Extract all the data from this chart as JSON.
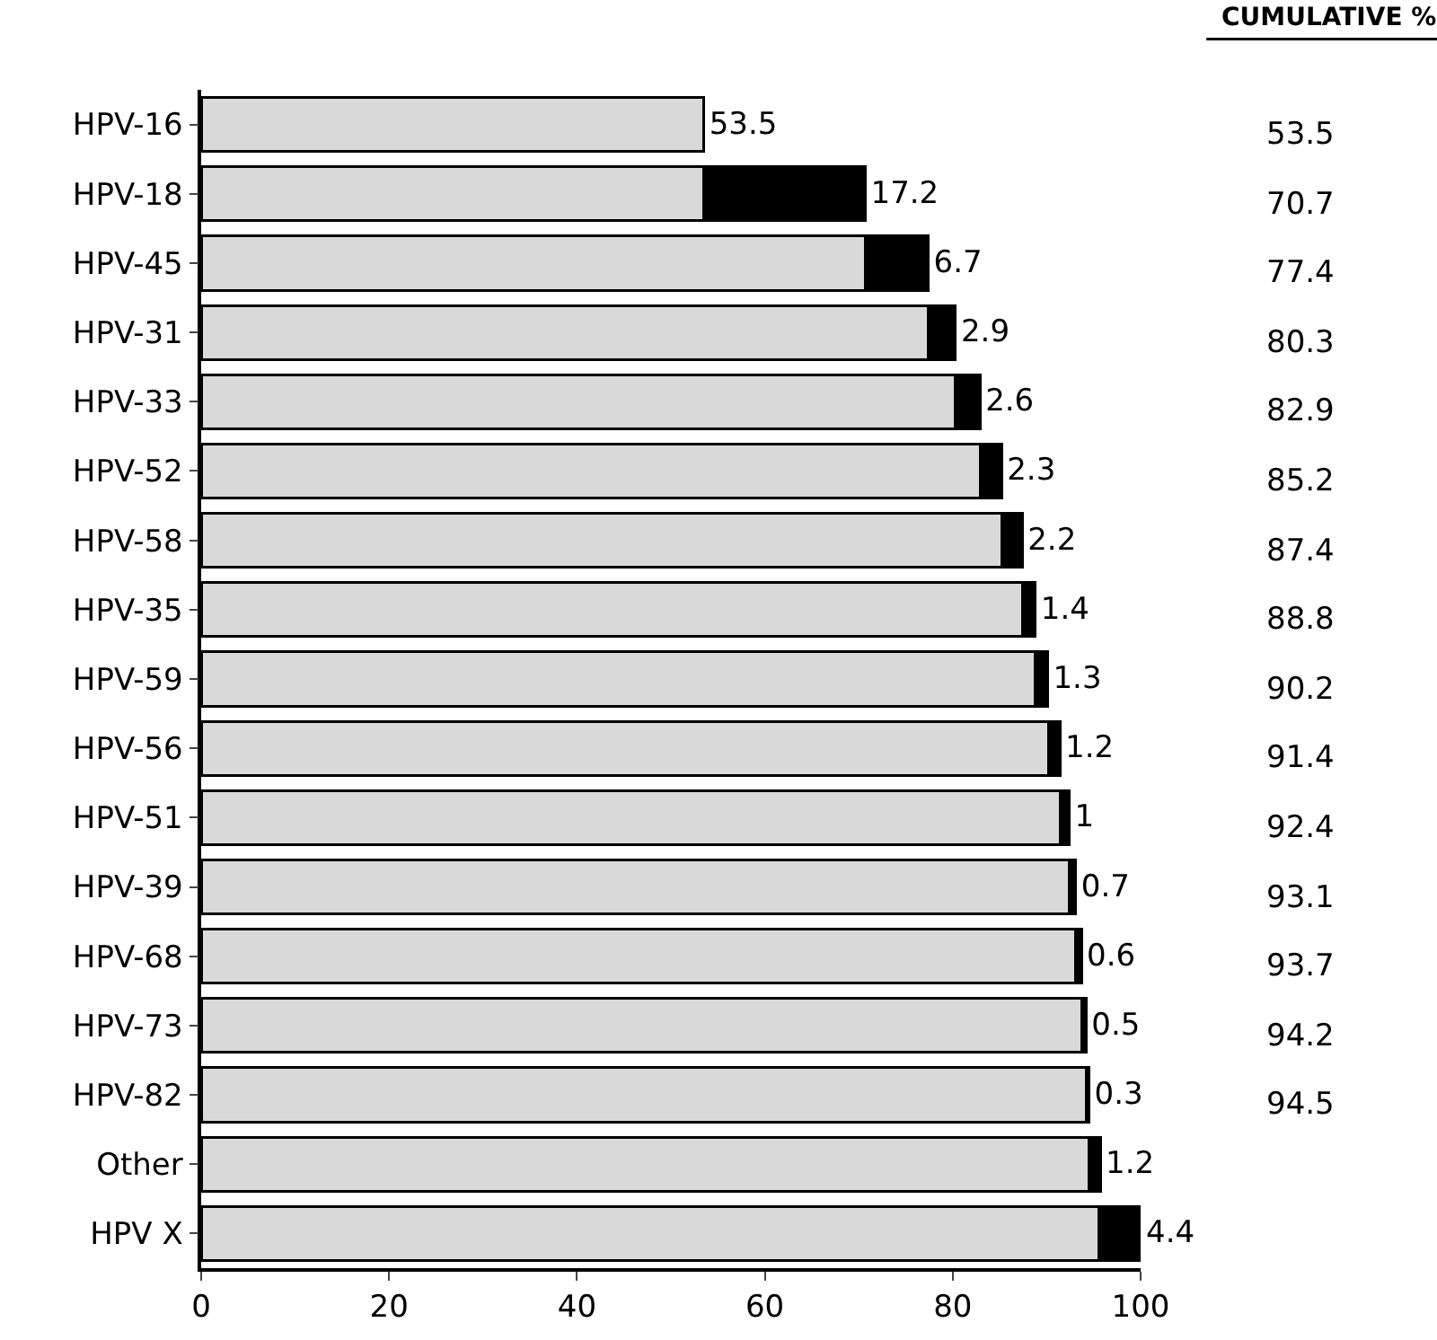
{
  "chart_data": {
    "type": "bar",
    "orientation": "horizontal",
    "stacked": true,
    "categories": [
      "HPV-16",
      "HPV-18",
      "HPV-45",
      "HPV-31",
      "HPV-33",
      "HPV-52",
      "HPV-58",
      "HPV-35",
      "HPV-59",
      "HPV-56",
      "HPV-51",
      "HPV-39",
      "HPV-68",
      "HPV-73",
      "HPV-82",
      "Other",
      "HPV X"
    ],
    "series": [
      {
        "color": "#d9d9d9",
        "values": [
          0,
          53.5,
          70.7,
          77.4,
          80.3,
          82.9,
          85.2,
          87.4,
          88.8,
          90.2,
          91.4,
          92.4,
          93.1,
          93.7,
          94.2,
          94.5,
          95.6
        ]
      },
      {
        "colors": [
          "#d9d9d9",
          "#000000",
          "#000000",
          "#000000",
          "#000000",
          "#000000",
          "#000000",
          "#000000",
          "#000000",
          "#000000",
          "#000000",
          "#000000",
          "#000000",
          "#000000",
          "#000000",
          "#000000",
          "#000000"
        ],
        "values": [
          53.5,
          17.2,
          6.7,
          2.9,
          2.6,
          2.3,
          2.2,
          1.4,
          1.3,
          1.2,
          1,
          0.7,
          0.6,
          0.5,
          0.3,
          1.2,
          4.4
        ],
        "value_labels": [
          "53.5",
          "17.2",
          "6.7",
          "2.9",
          "2.6",
          "2.3",
          "2.2",
          "1.4",
          "1.3",
          "1.2",
          "1",
          "0.7",
          "0.6",
          "0.5",
          "0.3",
          "1.2",
          "4.4"
        ]
      }
    ],
    "annotations": [
      "CUMULATIVE %",
      "53.5",
      "70.7",
      "77.4",
      "80.3",
      "82.9",
      "85.2",
      "87.4",
      "88.8",
      "90.2",
      "91.4",
      "92.4",
      "93.1",
      "93.7",
      "94.2",
      "94.5"
    ],
    "xlim": [
      0,
      100
    ],
    "xticks": [
      0,
      20,
      40,
      60,
      80,
      100
    ],
    "grid": false
  }
}
